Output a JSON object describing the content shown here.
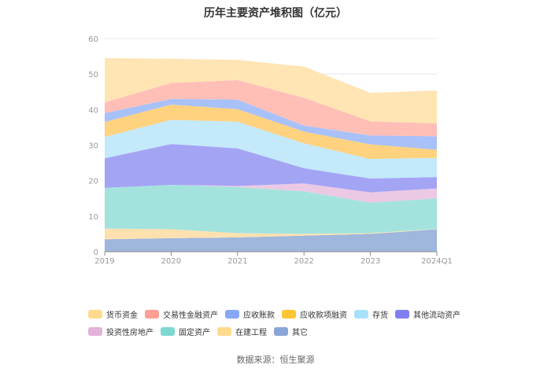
{
  "chart_data": {
    "type": "area",
    "stacked": true,
    "title": "历年主要资产堆积图（亿元）",
    "categories": [
      "2019",
      "2020",
      "2021",
      "2022",
      "2023",
      "2024Q1"
    ],
    "ylim": [
      0,
      60
    ],
    "yticks": [
      0,
      10,
      20,
      30,
      40,
      50,
      60
    ],
    "grid": true,
    "legend_position": "bottom",
    "series": [
      {
        "name": "其它",
        "color": "#9fb6dd",
        "values": [
          3.5,
          3.8,
          4.0,
          4.5,
          5.0,
          6.3
        ]
      },
      {
        "name": "在建工程",
        "color": "#ffe1b0",
        "values": [
          3.0,
          2.5,
          1.2,
          0.5,
          0.2,
          0.1
        ]
      },
      {
        "name": "固定资产",
        "color": "#a4e3dd",
        "values": [
          11.5,
          12.5,
          13.0,
          12.0,
          8.6,
          8.6
        ]
      },
      {
        "name": "投资性房地产",
        "color": "#ebc9e4",
        "values": [
          0,
          0,
          0.3,
          2.2,
          2.9,
          2.8
        ]
      },
      {
        "name": "其他流动资产",
        "color": "#a4a4f4",
        "values": [
          8.3,
          11.5,
          10.6,
          4.3,
          3.9,
          3.2
        ]
      },
      {
        "name": "存货",
        "color": "#c3e9fb",
        "values": [
          6.0,
          6.8,
          7.5,
          7.0,
          5.5,
          5.4
        ]
      },
      {
        "name": "应收款项融资",
        "color": "#ffd27f",
        "values": [
          4.2,
          4.3,
          3.5,
          3.3,
          4.1,
          2.3
        ]
      },
      {
        "name": "应收账款",
        "color": "#a9c1f9",
        "values": [
          2.5,
          1.6,
          2.7,
          1.7,
          2.5,
          3.8
        ]
      },
      {
        "name": "交易性金融资产",
        "color": "#ffbfb7",
        "values": [
          3.0,
          4.5,
          5.5,
          7.8,
          4.0,
          3.6
        ]
      },
      {
        "name": "货币资金",
        "color": "#ffe4b4",
        "values": [
          12.5,
          6.8,
          5.7,
          8.8,
          8.0,
          9.3
        ]
      }
    ]
  },
  "legend": {
    "row1": [
      {
        "label": "货币资金",
        "color": "#ffd98c"
      },
      {
        "label": "交易性金融资产",
        "color": "#ff9e93"
      },
      {
        "label": "应收账款",
        "color": "#88a8f6"
      },
      {
        "label": "应收款项融资",
        "color": "#ffc533"
      },
      {
        "label": "存货",
        "color": "#a8e2fa"
      },
      {
        "label": "其他流动资产",
        "color": "#7f7ff0"
      }
    ],
    "row2": [
      {
        "label": "投资性房地产",
        "color": "#e3b3da"
      },
      {
        "label": "固定资产",
        "color": "#7dd9d0"
      },
      {
        "label": "在建工程",
        "color": "#ffd98c"
      },
      {
        "label": "其它",
        "color": "#8aa6d6"
      }
    ]
  },
  "source": "数据来源：恒生聚源"
}
